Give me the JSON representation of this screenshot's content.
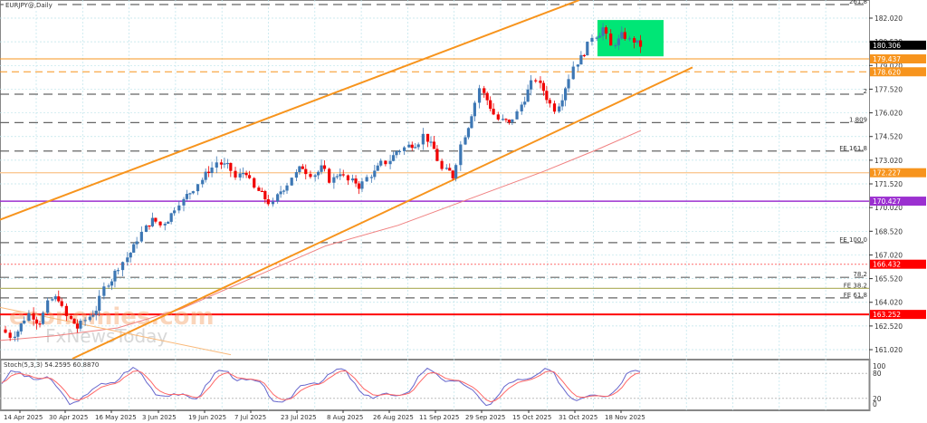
{
  "header": {
    "symbol_title": "EURJPY@,Daily"
  },
  "stochastic": {
    "label": "Stoch(5,3,3) 54.2595 60.8870",
    "levels": [
      "100",
      "80",
      "20",
      "0"
    ]
  },
  "watermark": {
    "line1": "economies.com",
    "line2": "FxNewsToday"
  },
  "colors": {
    "bull": "#3d77b4",
    "bear": "#f00000",
    "channel": "#f7941d",
    "ma": "#f08080",
    "purple": "#9b30d0",
    "support_red": "#ff0000",
    "zone": "#00e676",
    "orange_tag": "#f7941d",
    "current_tag": "#000000",
    "stoch_main": "#6666cc",
    "stoch_signal": "#ff6666"
  },
  "price_axis": {
    "ticks": [
      "182.020",
      "180.520",
      "179.020",
      "177.520",
      "176.020",
      "174.520",
      "173.020",
      "171.520",
      "170.020",
      "168.520",
      "167.020",
      "165.520",
      "164.020",
      "162.520",
      "161.020"
    ]
  },
  "price_tags": [
    {
      "value": "180.306",
      "type": "current"
    },
    {
      "value": "179.437",
      "type": "orange"
    },
    {
      "value": "178.620",
      "type": "orange"
    },
    {
      "value": "172.227",
      "type": "orange-light"
    },
    {
      "value": "170.427",
      "type": "purple"
    },
    {
      "value": "166.432",
      "type": "red"
    },
    {
      "value": "163.252",
      "type": "red"
    }
  ],
  "fib_labels": [
    {
      "text": "261.8"
    },
    {
      "text": "2"
    },
    {
      "text": "1.809"
    },
    {
      "text": "FE 161.8"
    },
    {
      "text": "FE 100.0"
    },
    {
      "text": "78.2"
    },
    {
      "text": "FE 38.2"
    },
    {
      "text": "FE 61.8"
    }
  ],
  "date_axis": {
    "labels": [
      "14 Apr 2025",
      "30 Apr 2025",
      "16 May 2025",
      "3 Jun 2025",
      "19 Jun 2025",
      "7 Jul 2025",
      "23 Jul 2025",
      "8 Aug 2025",
      "26 Aug 2025",
      "11 Sep 2025",
      "29 Sep 2025",
      "15 Oct 2025",
      "31 Oct 2025",
      "18 Nov 2025"
    ]
  },
  "chart_data": {
    "type": "candlestick",
    "title": "EURJPY@,Daily",
    "timeframe": "Daily",
    "last_price": 180.306,
    "y_range": [
      160.5,
      183.0
    ],
    "x_labels": [
      "14 Apr 2025",
      "30 Apr 2025",
      "16 May 2025",
      "3 Jun 2025",
      "19 Jun 2025",
      "7 Jul 2025",
      "23 Jul 2025",
      "8 Aug 2025",
      "26 Aug 2025",
      "11 Sep 2025",
      "29 Sep 2025",
      "15 Oct 2025",
      "31 Oct 2025",
      "18 Nov 2025"
    ],
    "close_path": [
      161.9,
      162.6,
      163.3,
      162.8,
      163.9,
      164.3,
      163.1,
      162.4,
      162.9,
      163.6,
      164.9,
      165.9,
      166.6,
      167.5,
      168.4,
      169.2,
      168.9,
      169.6,
      170.4,
      171.0,
      171.6,
      172.4,
      172.9,
      172.6,
      171.9,
      172.3,
      171.2,
      170.6,
      170.2,
      171.3,
      172.0,
      172.6,
      172.2,
      172.5,
      171.8,
      172.3,
      171.7,
      171.4,
      171.9,
      172.5,
      172.9,
      173.6,
      173.8,
      174.1,
      174.6,
      173.7,
      172.4,
      172.0,
      174.0,
      176.0,
      177.6,
      176.4,
      175.6,
      175.3,
      176.0,
      177.4,
      178.2,
      177.0,
      176.3,
      177.7,
      179.0,
      179.9,
      180.9,
      181.4,
      180.2,
      180.9,
      180.6,
      180.3
    ],
    "horizontal_levels": [
      {
        "price": 179.437,
        "style": "solid-orange"
      },
      {
        "price": 178.62,
        "style": "dashed-orange"
      },
      {
        "price": 172.227,
        "style": "solid-light-orange"
      },
      {
        "price": 170.427,
        "style": "solid-purple"
      },
      {
        "price": 166.432,
        "style": "dotted-red"
      },
      {
        "price": 163.252,
        "style": "solid-red"
      }
    ],
    "fibonacci_levels": [
      {
        "label": "261.8",
        "price": 183.1
      },
      {
        "label": "2",
        "price": 177.2
      },
      {
        "label": "1.809",
        "price": 175.4
      },
      {
        "label": "FE 161.8",
        "price": 173.6
      },
      {
        "label": "FE 100.0",
        "price": 167.8
      },
      {
        "label": "78.2",
        "price": 165.6
      },
      {
        "label": "FE 38.2",
        "price": 164.9
      },
      {
        "label": "FE 61.8",
        "price": 164.3
      }
    ],
    "channel": {
      "upper_start": [
        0,
        169.2
      ],
      "upper_end": [
        640,
        183.2
      ],
      "lower_start": [
        80,
        160.8
      ],
      "lower_end": [
        765,
        178.9
      ]
    },
    "highlight_zone": {
      "price_top": 181.9,
      "price_bottom": 179.6
    },
    "indicator": {
      "name": "Stoch(5,3,3)",
      "main": 54.2595,
      "signal": 60.887,
      "levels": [
        0,
        20,
        80,
        100
      ]
    }
  }
}
